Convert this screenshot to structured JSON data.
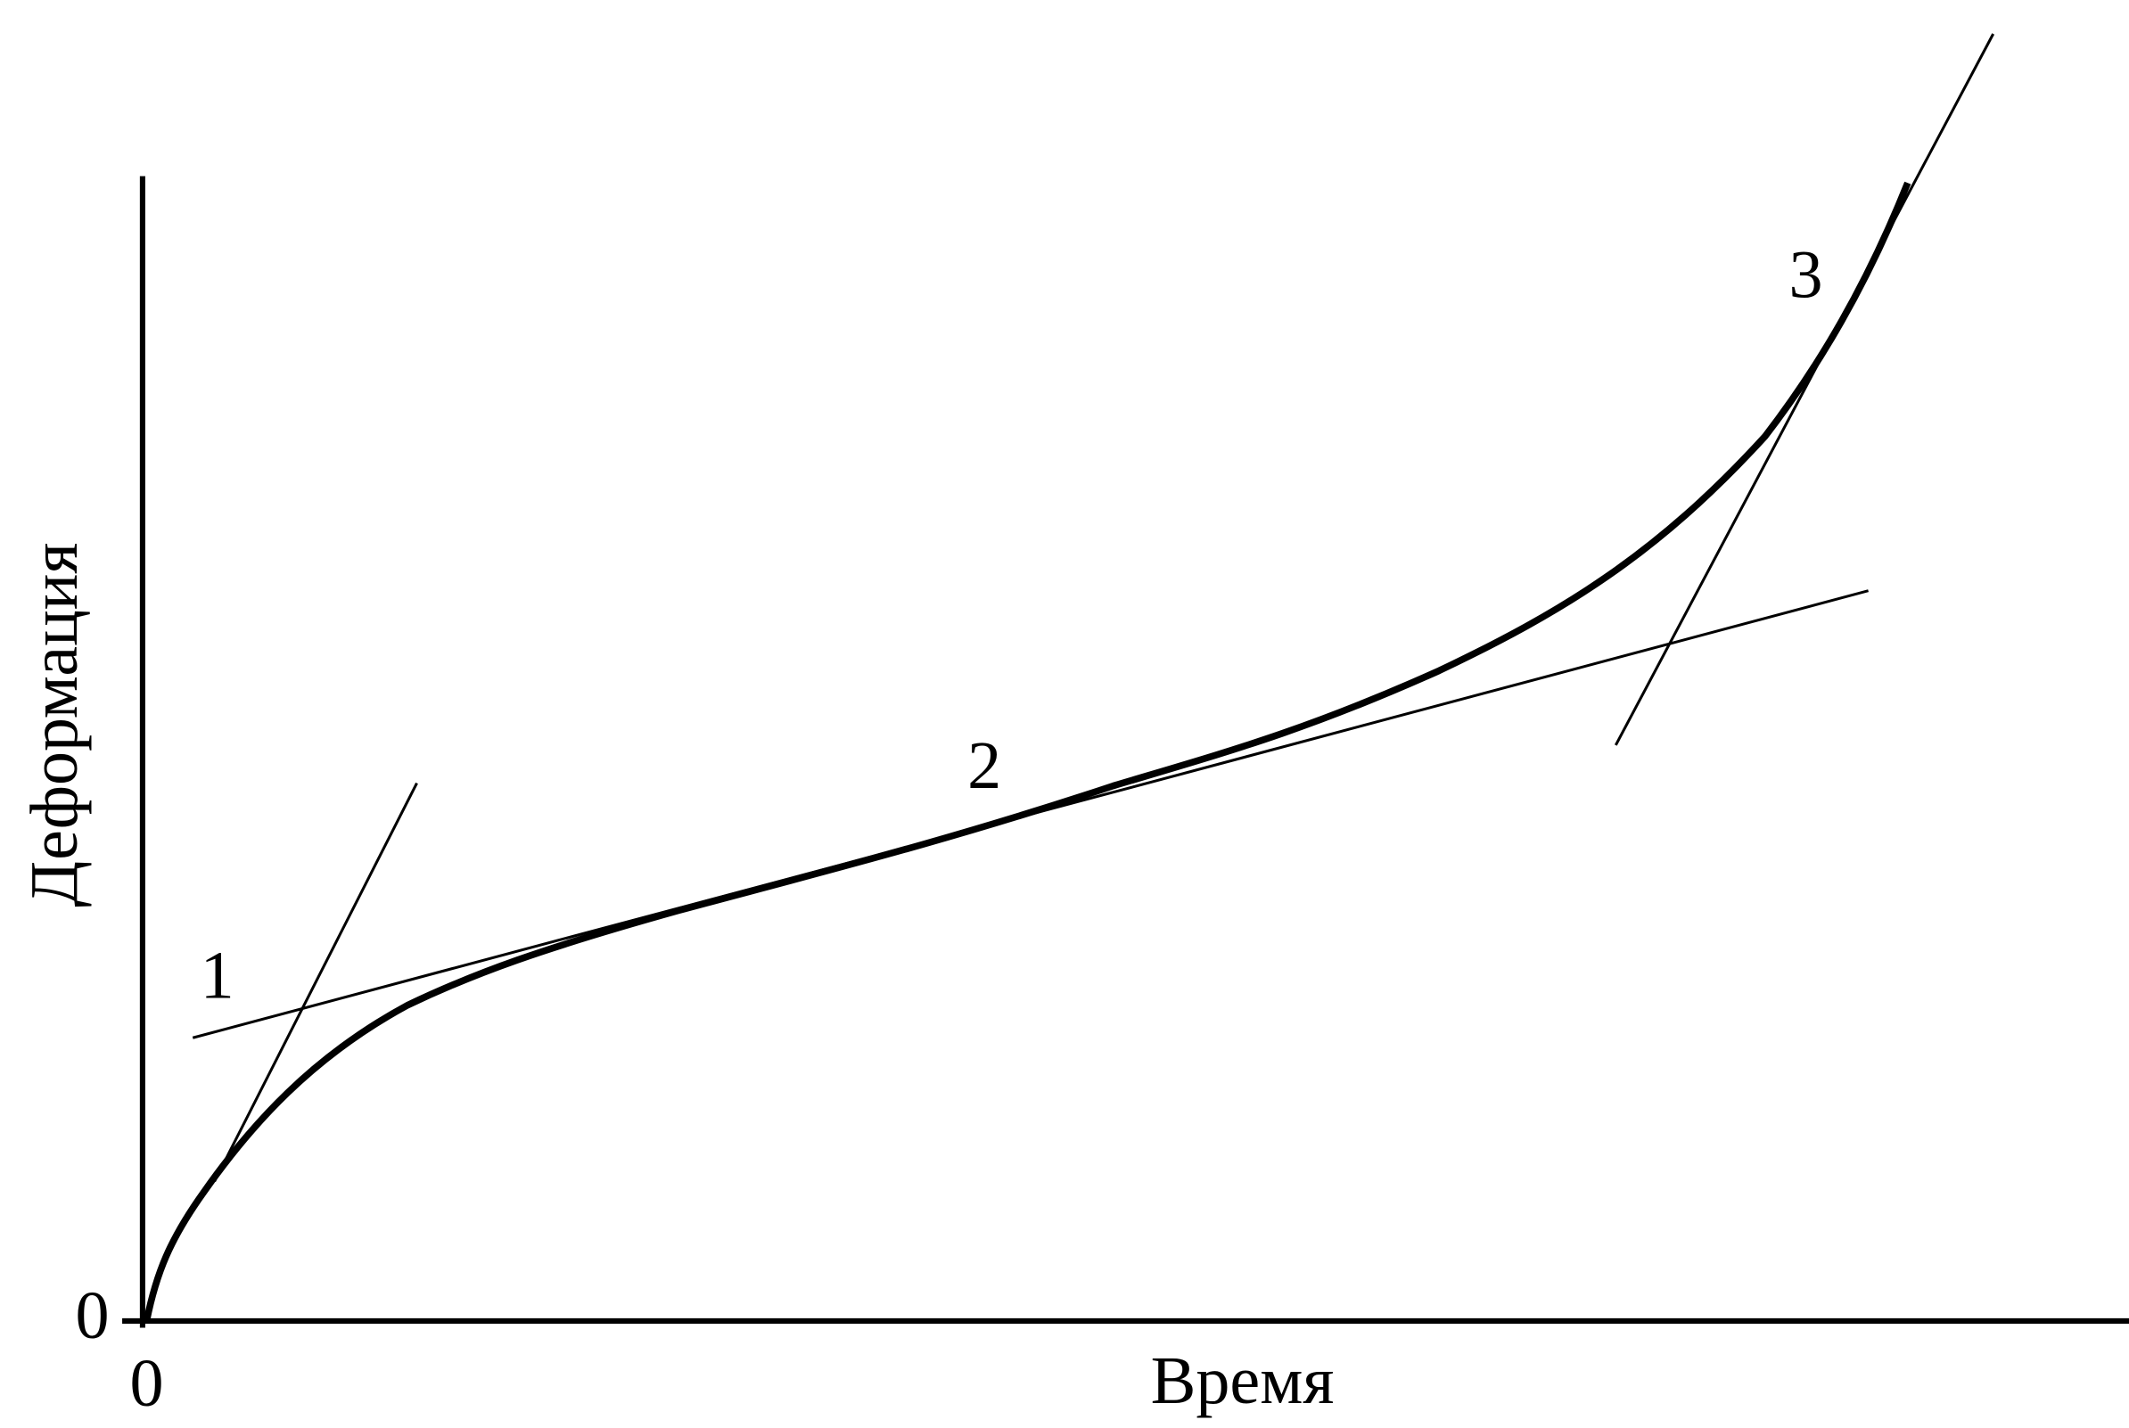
{
  "axes": {
    "y_label": "Деформация",
    "x_label": "Время",
    "y_origin": "0",
    "x_origin": "0"
  },
  "stage_labels": [
    "1",
    "2",
    "3"
  ]
}
